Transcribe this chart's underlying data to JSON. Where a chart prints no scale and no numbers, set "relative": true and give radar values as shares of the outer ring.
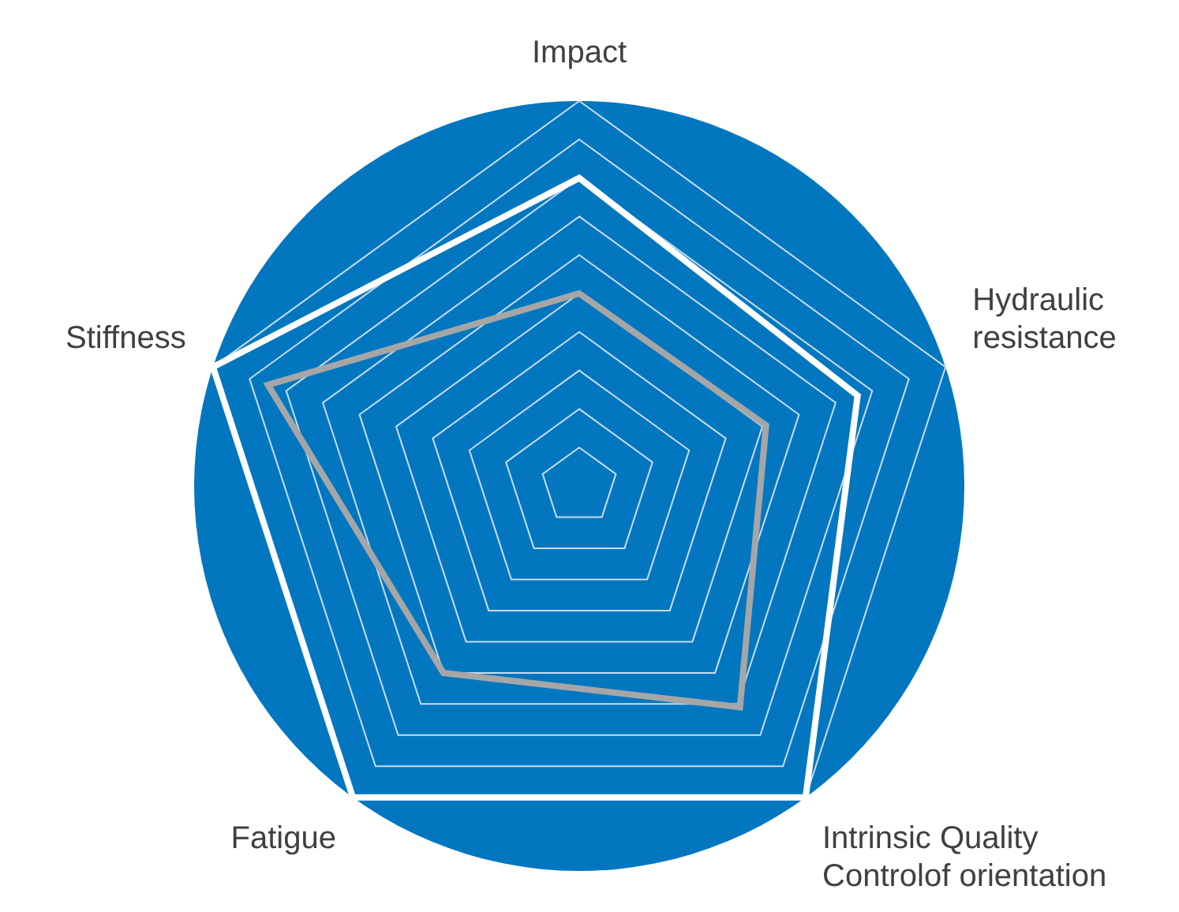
{
  "chart_data": {
    "type": "radar",
    "relative": true,
    "grid": true,
    "marker": "none",
    "categories": [
      "Impact",
      "Hydraulic\nresistance",
      "Intrinsic Quality\nControlof orientation",
      "Fatigue",
      "Stiffness"
    ],
    "series": [
      {
        "color": "#ffffff",
        "values": [
          0.8,
          0.76,
          1,
          1,
          1
        ]
      },
      {
        "color": "#a6a6a6",
        "values": [
          0.5,
          0.51,
          0.71,
          0.6,
          0.85
        ]
      }
    ]
  }
}
